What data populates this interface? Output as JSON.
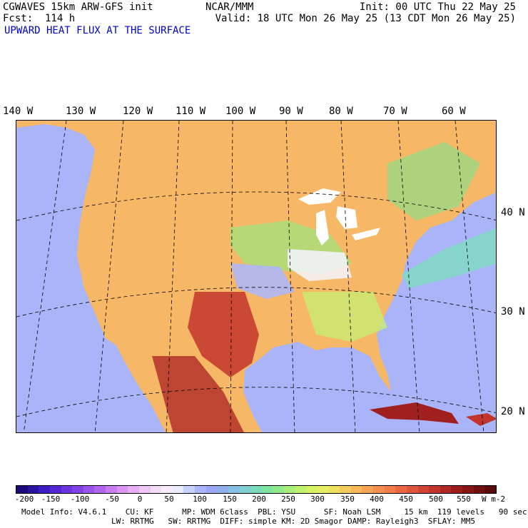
{
  "header": {
    "model_title": "CGWAVES 15km ARW-GFS init",
    "forecast": "Fcst:  114 h",
    "field_title": "UPWARD HEAT FLUX AT THE SURFACE",
    "source": "NCAR/MMM",
    "init_time": "Init: 00 UTC Thu 22 May 25",
    "valid_time": "Valid: 18 UTC Mon 26 May 25 (13 CDT Mon 26 May 25)",
    "field_color": "#0000cc"
  },
  "axes": {
    "longitudes": [
      "140 W",
      "130 W",
      "120 W",
      "110 W",
      "100 W",
      "90 W",
      "80 W",
      "70 W",
      "60 W"
    ],
    "latitudes": [
      "40 N",
      "30 N",
      "20 N"
    ]
  },
  "colorbar": {
    "labels": [
      "-200",
      "-150",
      "-100",
      "-50",
      "0",
      "50",
      "100",
      "150",
      "200",
      "250",
      "300",
      "350",
      "400",
      "450",
      "500",
      "550"
    ],
    "unit": "W m-2",
    "colors": [
      "#1a0a7a",
      "#2a14a0",
      "#3d1cc4",
      "#5526d6",
      "#6c33e0",
      "#8442e6",
      "#9b55ec",
      "#b266ee",
      "#c87cf0",
      "#da94f2",
      "#e8aef4",
      "#f0c6f6",
      "#f4dcf8",
      "#f8ecfb",
      "#e9ecff",
      "#c9d2ff",
      "#aab6ff",
      "#9aa8f6",
      "#8fb0ee",
      "#86c0e4",
      "#7ed0d4",
      "#78dcbc",
      "#7ee6a0",
      "#90ec8a",
      "#a8f07a",
      "#c0f270",
      "#d6f266",
      "#e6ee62",
      "#f0e060",
      "#f6cc5e",
      "#f8b85a",
      "#f8a456",
      "#f69050",
      "#f27c4a",
      "#ec6844",
      "#e0563c",
      "#d24434",
      "#c2342c",
      "#b02824",
      "#9c1e1c",
      "#861616",
      "#701010",
      "#5a0a0a"
    ]
  },
  "model_info": {
    "line1": "Model Info: V4.6.1    CU: KF      MP: WDM 6class  PBL: YSU      SF: Noah LSM     15 km  119 levels   90 sec",
    "line2": "LW: RRTMG   SW: RRTMG  DIFF: simple KM: 2D Smagor DAMP: Rayleigh3  SFLAY: MM5"
  },
  "map": {
    "ocean_color": "#aab4f8",
    "land_color": "#f6b866",
    "lake_color": "#ffffff",
    "border_color": "#000000"
  }
}
